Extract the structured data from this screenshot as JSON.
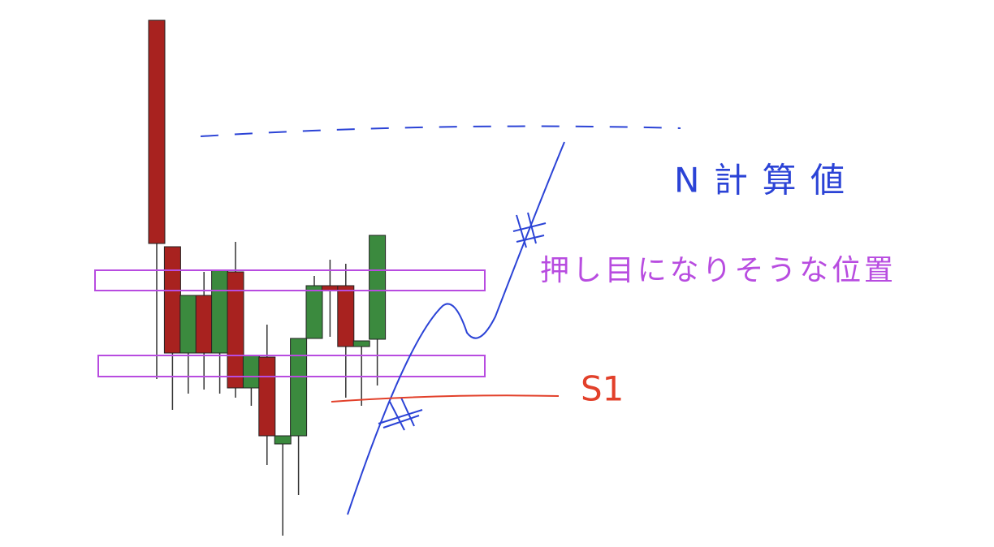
{
  "chart_data": {
    "type": "candlestick",
    "categories": [
      null,
      null,
      null,
      null,
      null,
      null,
      null,
      null,
      null,
      null,
      null,
      null,
      null,
      null,
      null
    ],
    "open": [
      649,
      370,
      239,
      310,
      239,
      339,
      196,
      234,
      127,
      137,
      257,
      322,
      322,
      247,
      256
    ],
    "close": [
      374,
      239,
      310,
      239,
      341,
      196,
      236,
      137,
      137,
      257,
      322,
      316,
      247,
      254,
      384
    ],
    "high": [
      649,
      370,
      310,
      339,
      341,
      376,
      236,
      274,
      137,
      257,
      334,
      354,
      349,
      254,
      384
    ],
    "low": [
      207,
      169,
      189,
      194,
      189,
      184,
      174,
      101,
      14,
      64,
      257,
      259,
      184,
      174,
      199
    ],
    "up_color": "#3b8a3e",
    "down_color": "#a8221f",
    "ylim": [
      0,
      674
    ],
    "annotations": [
      "N計算値",
      "押し目になりそうな位置",
      "S1"
    ]
  }
}
